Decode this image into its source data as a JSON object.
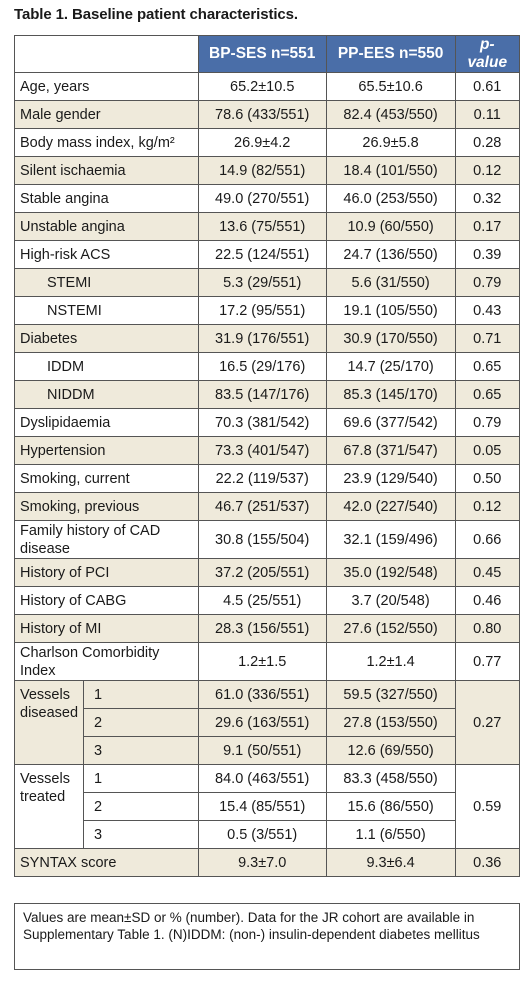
{
  "title": "Table 1. Baseline patient characteristics.",
  "headers": {
    "col1": "BP-SES n=551",
    "col2": "PP-EES n=550",
    "col3": "p-value"
  },
  "rows": [
    {
      "label": "Age, years",
      "a": "65.2±10.5",
      "b": "65.5±10.6",
      "p": "0.61"
    },
    {
      "label": "Male gender",
      "a": "78.6 (433/551)",
      "b": "82.4 (453/550)",
      "p": "0.11"
    },
    {
      "label": "Body mass index, kg/m²",
      "a": "26.9±4.2",
      "b": "26.9±5.8",
      "p": "0.28"
    },
    {
      "label": "Silent ischaemia",
      "a": "14.9 (82/551)",
      "b": "18.4 (101/550)",
      "p": "0.12"
    },
    {
      "label": "Stable angina",
      "a": "49.0 (270/551)",
      "b": "46.0 (253/550)",
      "p": "0.32"
    },
    {
      "label": "Unstable angina",
      "a": "13.6 (75/551)",
      "b": "10.9 (60/550)",
      "p": "0.17"
    },
    {
      "label": "High-risk ACS",
      "a": "22.5 (124/551)",
      "b": "24.7 (136/550)",
      "p": "0.39"
    },
    {
      "label": "STEMI",
      "a": "5.3 (29/551)",
      "b": "5.6 (31/550)",
      "p": "0.79"
    },
    {
      "label": "NSTEMI",
      "a": "17.2 (95/551)",
      "b": "19.1 (105/550)",
      "p": "0.43"
    },
    {
      "label": "Diabetes",
      "a": "31.9 (176/551)",
      "b": "30.9 (170/550)",
      "p": "0.71"
    },
    {
      "label": "IDDM",
      "a": "16.5 (29/176)",
      "b": "14.7 (25/170)",
      "p": "0.65"
    },
    {
      "label": "NIDDM",
      "a": "83.5 (147/176)",
      "b": "85.3 (145/170)",
      "p": "0.65"
    },
    {
      "label": "Dyslipidaemia",
      "a": "70.3 (381/542)",
      "b": "69.6 (377/542)",
      "p": "0.79"
    },
    {
      "label": "Hypertension",
      "a": "73.3 (401/547)",
      "b": "67.8 (371/547)",
      "p": "0.05"
    },
    {
      "label": "Smoking, current",
      "a": "22.2 (119/537)",
      "b": "23.9 (129/540)",
      "p": "0.50"
    },
    {
      "label": "Smoking, previous",
      "a": "46.7 (251/537)",
      "b": "42.0 (227/540)",
      "p": "0.12"
    },
    {
      "label": "Family history of CAD disease",
      "a": "30.8 (155/504)",
      "b": "32.1 (159/496)",
      "p": "0.66"
    },
    {
      "label": "History of PCI",
      "a": "37.2 (205/551)",
      "b": "35.0 (192/548)",
      "p": "0.45"
    },
    {
      "label": "History of CABG",
      "a": "4.5 (25/551)",
      "b": "3.7 (20/548)",
      "p": "0.46"
    },
    {
      "label": "History of MI",
      "a": "28.3 (156/551)",
      "b": "27.6 (152/550)",
      "p": "0.80"
    },
    {
      "label": "Charlson Comorbidity Index",
      "a": "1.2±1.5",
      "b": "1.2±1.4",
      "p": "0.77"
    }
  ],
  "vessels_diseased": {
    "label": "Vessels diseased",
    "p": "0.27",
    "sub": [
      {
        "n": "1",
        "a": "61.0 (336/551)",
        "b": "59.5 (327/550)"
      },
      {
        "n": "2",
        "a": "29.6 (163/551)",
        "b": "27.8 (153/550)"
      },
      {
        "n": "3",
        "a": "9.1 (50/551)",
        "b": "12.6 (69/550)"
      }
    ]
  },
  "vessels_treated": {
    "label": "Vessels treated",
    "p": "0.59",
    "sub": [
      {
        "n": "1",
        "a": "84.0 (463/551)",
        "b": "83.3 (458/550)"
      },
      {
        "n": "2",
        "a": "15.4 (85/551)",
        "b": "15.6 (86/550)"
      },
      {
        "n": "3",
        "a": "0.5 (3/551)",
        "b": "1.1 (6/550)"
      }
    ]
  },
  "syntax": {
    "label": "SYNTAX score",
    "a": "9.3±7.0",
    "b": "9.3±6.4",
    "p": "0.36"
  },
  "note": "Values are mean±SD or % (number). Data for the JR cohort are available in Supplementary Table 1. (N)IDDM: (non-) insulin-dependent diabetes mellitus"
}
